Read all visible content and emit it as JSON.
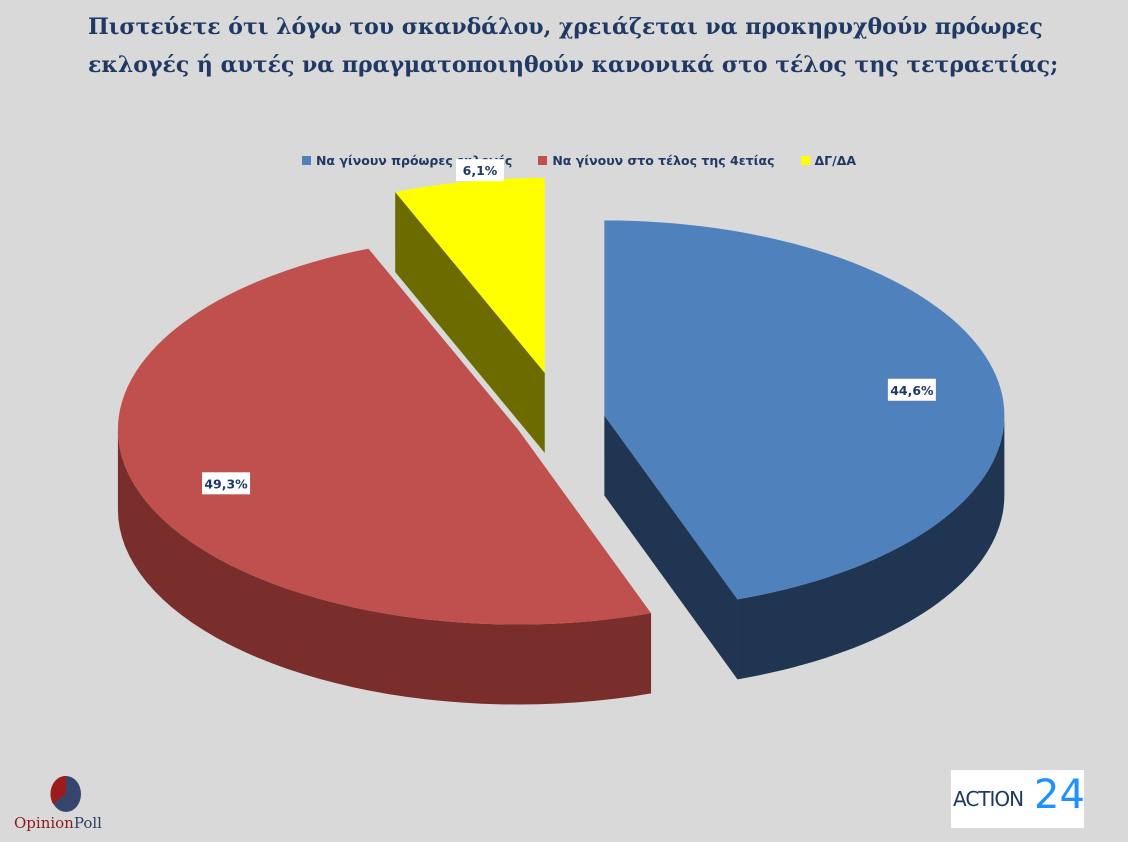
{
  "chart_data": {
    "type": "pie",
    "title": "Πιστεύετε ότι λόγω του σκανδάλου, χρειάζεται να προκηρυχθούν πρόωρες εκλογές ή αυτές να πραγματοποιηθούν κανονικά στο τέλος της τετραετίας;",
    "legend_position": "top",
    "three_d": true,
    "exploded": true,
    "slices": [
      {
        "name": "Να γίνουν πρόωρες εκλογές",
        "value": 44.6,
        "label": "44,6%",
        "color": "#4f81bd",
        "side_color": "#1f3552"
      },
      {
        "name": "Να γίνουν στο τέλος της 4ετίας",
        "value": 49.3,
        "label": "49,3%",
        "color": "#c0504d",
        "side_color": "#7a2e2c"
      },
      {
        "name": "ΔΓ/ΔΑ",
        "value": 6.1,
        "label": "6,1%",
        "color": "#ffff00",
        "side_color": "#6b6b00"
      }
    ]
  },
  "logos": {
    "left": "OpinionPoll",
    "left_a": "Opinion",
    "left_b": "Poll",
    "right": "ACTION 24",
    "right_a": "ACTION",
    "right_b": "24"
  }
}
